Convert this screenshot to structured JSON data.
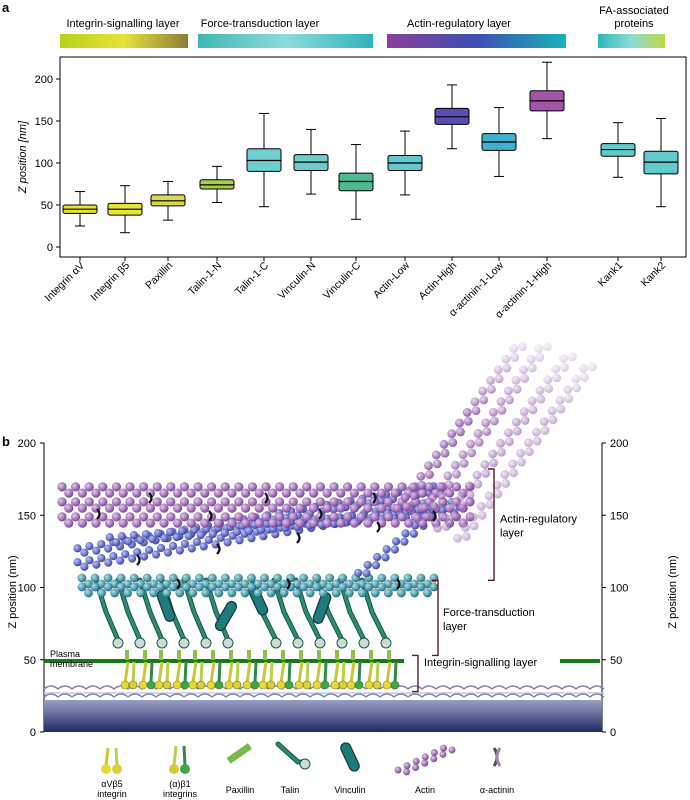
{
  "panel_a": {
    "letter": "a"
  },
  "panel_b": {
    "letter": "b"
  },
  "layer_headers": [
    {
      "label": "Integrin-signalling layer",
      "gradient": [
        "#b9cf1e",
        "#e6e23a",
        "#8d7c3a"
      ]
    },
    {
      "label": "Force-transduction layer",
      "gradient": [
        "#3fb8b5",
        "#8edbdb",
        "#2fb3bd"
      ]
    },
    {
      "label": "Actin-regulatory layer",
      "gradient": [
        "#8b3f9a",
        "#3c4fb3",
        "#19b3b8"
      ]
    },
    {
      "label": "FA-associated proteins",
      "gradient": [
        "#2eb8bd",
        "#8edbd6",
        "#bcd93a"
      ]
    }
  ],
  "chart_data": [
    {
      "type": "box",
      "ylabel": "Z position [nm]",
      "ylim": [
        0,
        220
      ],
      "yticks": [
        0,
        50,
        100,
        150,
        200
      ],
      "categories": [
        "Integrin αV",
        "Integrin β5",
        "Paxillin",
        "Talin-1-N",
        "Talin-1-C",
        "Vinculin-N",
        "Vinculin-C",
        "Actin-Low",
        "Actin-High",
        "α-actinin-1-Low",
        "α-actinin-1-High",
        "Kank1",
        "Kank2"
      ],
      "boxes": [
        {
          "label": "Integrin αV",
          "min": 25,
          "q1": 40,
          "median": 45,
          "q3": 50,
          "max": 66,
          "color": "#e8e23a"
        },
        {
          "label": "Integrin β5",
          "min": 17,
          "q1": 38,
          "median": 45,
          "q3": 52,
          "max": 73,
          "color": "#e6e23a"
        },
        {
          "label": "Paxillin",
          "min": 32,
          "q1": 49,
          "median": 55,
          "q3": 62,
          "max": 78,
          "color": "#d9d94e"
        },
        {
          "label": "Talin-1-N",
          "min": 53,
          "q1": 69,
          "median": 74,
          "q3": 80,
          "max": 96,
          "color": "#a6cf4a"
        },
        {
          "label": "Talin-1-C",
          "min": 48,
          "q1": 90,
          "median": 103,
          "q3": 117,
          "max": 159,
          "color": "#6ecfd2"
        },
        {
          "label": "Vinculin-N",
          "min": 63,
          "q1": 91,
          "median": 101,
          "q3": 110,
          "max": 140,
          "color": "#6bcccd"
        },
        {
          "label": "Vinculin-C",
          "min": 33,
          "q1": 67,
          "median": 78,
          "q3": 88,
          "max": 122,
          "color": "#4cbb8f"
        },
        {
          "label": "Actin-Low",
          "min": 62,
          "q1": 91,
          "median": 100,
          "q3": 109,
          "max": 138,
          "color": "#62c9cd"
        },
        {
          "label": "Actin-High",
          "min": 117,
          "q1": 146,
          "median": 155,
          "q3": 165,
          "max": 193,
          "color": "#5a4db5"
        },
        {
          "label": "α-actinin-1-Low",
          "min": 84,
          "q1": 115,
          "median": 125,
          "q3": 135,
          "max": 166,
          "color": "#3fb0d2"
        },
        {
          "label": "α-actinin-1-High",
          "min": 129,
          "q1": 162,
          "median": 174,
          "q3": 186,
          "max": 220,
          "color": "#a154a8"
        },
        {
          "label": "Kank1",
          "min": 83,
          "q1": 108,
          "median": 116,
          "q3": 123,
          "max": 148,
          "color": "#62c9cd"
        },
        {
          "label": "Kank2",
          "min": 48,
          "q1": 87,
          "median": 101,
          "q3": 114,
          "max": 153,
          "color": "#62c9cd"
        }
      ]
    },
    {
      "type": "diagram",
      "ylabel": "Z position (nm)",
      "ylim": [
        0,
        200
      ],
      "yticks": [
        0,
        50,
        100,
        150,
        200
      ],
      "layers": [
        {
          "label": "Actin-regulatory layer",
          "from": 105,
          "to": 182
        },
        {
          "label": "Force-transduction layer",
          "from": 53,
          "to": 105
        },
        {
          "label": "Integrin-signalling layer",
          "from": 28,
          "to": 53
        }
      ],
      "membrane": {
        "label": "Plasma membrane",
        "z": 48
      },
      "legend": [
        "αVβ5 integrin",
        "(α)β1 integrins",
        "Paxillin",
        "Talin",
        "Vinculin",
        "Actin",
        "α-actinin"
      ]
    }
  ]
}
